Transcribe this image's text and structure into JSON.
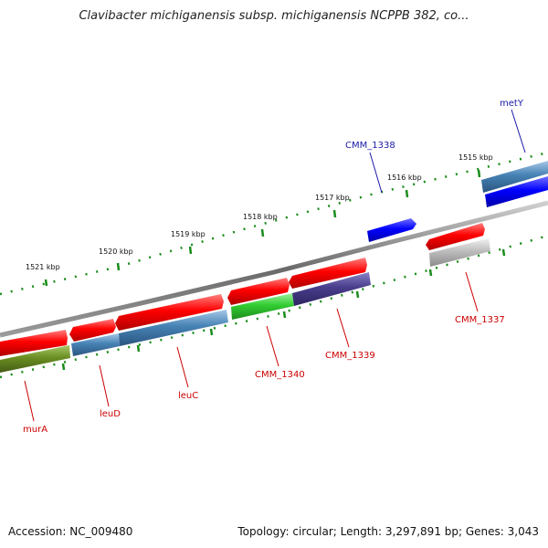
{
  "title": "Clavibacter michiganensis subsp. michiganensis NCPPB 382, co...",
  "footer": {
    "accession": "Accession: NC_009480",
    "summary": "Topology: circular; Length: 3,297,891 bp; Genes: 3,043"
  },
  "ticks": [
    "1515 kbp",
    "1516 kbp",
    "1517 kbp",
    "1518 kbp",
    "1519 kbp",
    "1520 kbp",
    "1521 kbp"
  ],
  "genes": [
    "metY",
    "CMM_1338",
    "CMM_1337",
    "CMM_1339",
    "CMM_1340",
    "leuC",
    "leuD",
    "murA"
  ],
  "colors": {
    "red": "#ff0000",
    "blue": "#0000ff",
    "steel_blue": "#4682b4",
    "slate_blue": "#483d8b",
    "lime_green": "#32cd32",
    "olive": "#6b8e23",
    "gray": "#b0b0b0",
    "tick_green": "#1a8c1a",
    "label_red": "#cc0000",
    "label_blue": "#1a1aaa"
  }
}
